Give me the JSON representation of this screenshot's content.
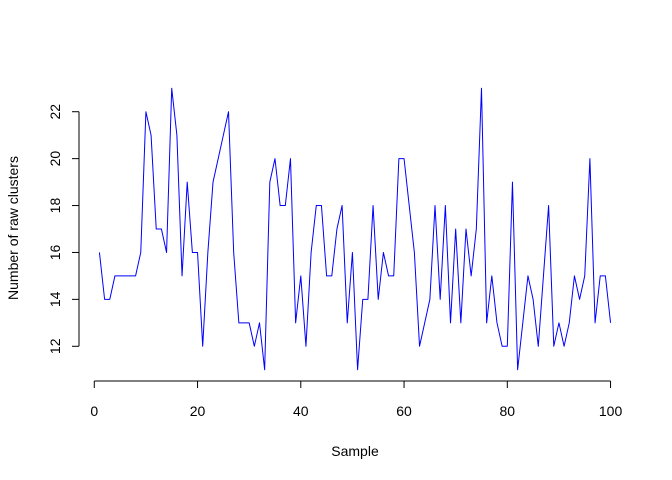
{
  "chart_data": {
    "type": "line",
    "title": "",
    "xlabel": "Sample",
    "ylabel": "Number of raw clusters",
    "line_color": "#0000ff",
    "x_ticks": [
      "0",
      "20",
      "40",
      "60",
      "80",
      "100"
    ],
    "y_ticks": [
      "12",
      "14",
      "16",
      "18",
      "20",
      "22"
    ],
    "xlim": [
      -2.96,
      103.96
    ],
    "ylim": [
      10.52,
      23.48
    ],
    "grid": false,
    "series": [
      {
        "x": [
          1,
          2,
          3,
          4,
          5,
          6,
          7,
          8,
          9,
          10,
          11,
          12,
          13,
          14,
          15,
          16,
          17,
          18,
          19,
          20,
          21,
          22,
          23,
          24,
          25,
          26,
          27,
          28,
          29,
          30,
          31,
          32,
          33,
          34,
          35,
          36,
          37,
          38,
          39,
          40,
          41,
          42,
          43,
          44,
          45,
          46,
          47,
          48,
          49,
          50,
          51,
          52,
          53,
          54,
          55,
          56,
          57,
          58,
          59,
          60,
          61,
          62,
          63,
          64,
          65,
          66,
          67,
          68,
          69,
          70,
          71,
          72,
          73,
          74,
          75,
          76,
          77,
          78,
          79,
          80,
          81,
          82,
          83,
          84,
          85,
          86,
          87,
          88,
          89,
          90,
          91,
          92,
          93,
          94,
          95,
          96,
          97,
          98,
          99,
          100
        ],
        "values": [
          16,
          14,
          14,
          15,
          15,
          15,
          15,
          15,
          16,
          22,
          21,
          17,
          17,
          16,
          23,
          21,
          15,
          19,
          16,
          16,
          12,
          16,
          19,
          20,
          21,
          22,
          16,
          13,
          13,
          13,
          12,
          13,
          11,
          19,
          20,
          18,
          18,
          20,
          13,
          15,
          12,
          16,
          18,
          18,
          15,
          15,
          17,
          18,
          13,
          16,
          11,
          14,
          14,
          18,
          14,
          16,
          15,
          15,
          20,
          20,
          18,
          16,
          12,
          13,
          14,
          18,
          14,
          18,
          13,
          17,
          13,
          17,
          15,
          17,
          23,
          13,
          15,
          13,
          12,
          12,
          19,
          11,
          13,
          15,
          14,
          12,
          15,
          18,
          12,
          13,
          12,
          13,
          15,
          14,
          15,
          20,
          13,
          15,
          15,
          13
        ]
      }
    ]
  }
}
